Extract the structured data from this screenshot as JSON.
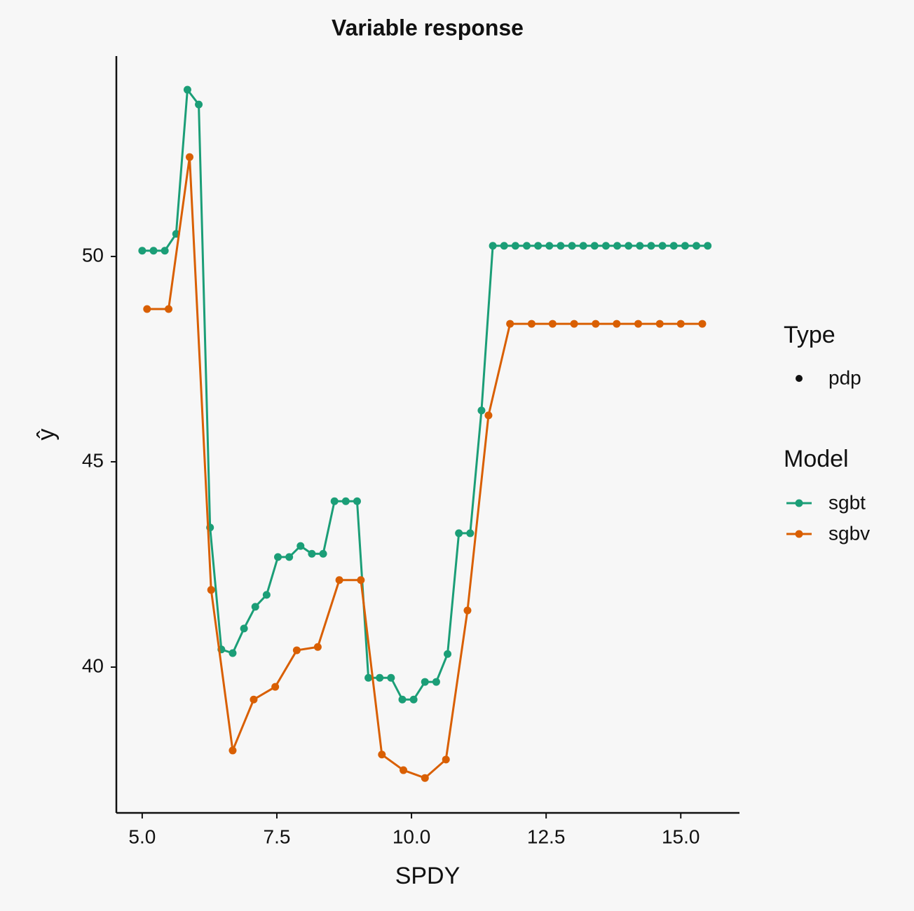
{
  "chart_data": {
    "type": "line",
    "title": "Variable response",
    "x_label": "SPDY",
    "y_label": "ŷ",
    "xlim": [
      4.52,
      16.09
    ],
    "ylim": [
      36.45,
      54.88
    ],
    "xticks": [
      {
        "value": 5,
        "label": "5.0"
      },
      {
        "value": 7.5,
        "label": "7.5"
      },
      {
        "value": 10,
        "label": "10.0"
      },
      {
        "value": 12.5,
        "label": "12.5"
      },
      {
        "value": 15,
        "label": "15.0"
      }
    ],
    "yticks": [
      40,
      45,
      50
    ],
    "grid": false,
    "legend": {
      "type_title": "Type",
      "type_items": [
        "pdp"
      ],
      "model_title": "Model"
    },
    "series": [
      {
        "name": "sgbt",
        "color": "#1b9e77",
        "x": [
          5.0,
          5.21,
          5.42,
          5.63,
          5.84,
          6.05,
          6.26,
          6.47,
          6.68,
          6.89,
          7.1,
          7.31,
          7.52,
          7.73,
          7.94,
          8.15,
          8.36,
          8.57,
          8.78,
          8.99,
          9.2,
          9.41,
          9.62,
          9.83,
          10.04,
          10.25,
          10.46,
          10.67,
          10.88,
          11.09,
          11.3,
          11.51,
          11.72,
          11.93,
          12.14,
          12.35,
          12.56,
          12.77,
          12.98,
          13.19,
          13.4,
          13.61,
          13.82,
          14.03,
          14.24,
          14.45,
          14.66,
          14.87,
          15.08,
          15.29,
          15.5
        ],
        "values": [
          50.14,
          50.14,
          50.14,
          50.55,
          54.06,
          53.7,
          43.4,
          40.43,
          40.34,
          40.94,
          41.47,
          41.76,
          42.68,
          42.68,
          42.95,
          42.76,
          42.76,
          44.04,
          44.04,
          44.04,
          39.74,
          39.74,
          39.74,
          39.21,
          39.21,
          39.64,
          39.64,
          40.32,
          43.26,
          43.26,
          46.25,
          50.26,
          50.26,
          50.26,
          50.26,
          50.26,
          50.26,
          50.26,
          50.26,
          50.26,
          50.26,
          50.26,
          50.26,
          50.26,
          50.26,
          50.26,
          50.26,
          50.26,
          50.26,
          50.26,
          50.26
        ]
      },
      {
        "name": "sgbv",
        "color": "#d95f02",
        "x": [
          5.09,
          5.49,
          5.88,
          6.28,
          6.68,
          7.07,
          7.47,
          7.87,
          8.26,
          8.66,
          9.06,
          9.45,
          9.85,
          10.25,
          10.64,
          11.04,
          11.43,
          11.83,
          12.23,
          12.62,
          13.02,
          13.42,
          13.81,
          14.21,
          14.61,
          15.0,
          15.4
        ],
        "values": [
          48.72,
          48.72,
          52.42,
          41.88,
          37.97,
          39.21,
          39.52,
          40.41,
          40.49,
          42.12,
          42.12,
          37.87,
          37.49,
          37.3,
          37.75,
          41.38,
          46.13,
          48.36,
          48.36,
          48.36,
          48.36,
          48.36,
          48.36,
          48.36,
          48.36,
          48.36,
          48.36
        ]
      }
    ]
  }
}
